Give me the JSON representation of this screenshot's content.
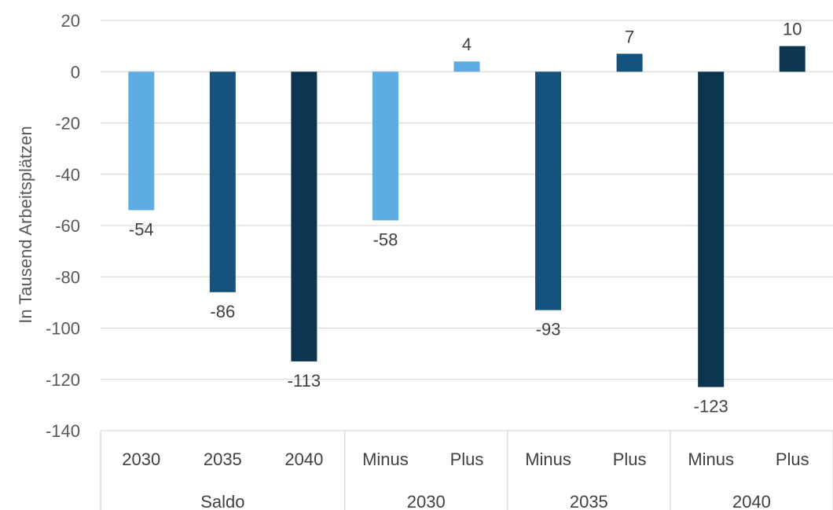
{
  "chart_data": {
    "type": "bar",
    "ylabel": "In Tausend Arbeitsplätzen",
    "ylim": [
      -140,
      20
    ],
    "yticks": [
      20,
      0,
      -20,
      -40,
      -60,
      -80,
      -100,
      -120,
      -140
    ],
    "grid": true,
    "groups": [
      {
        "name": "Saldo",
        "categories": [
          "2030",
          "2035",
          "2040"
        ]
      },
      {
        "name": "2030",
        "categories": [
          "Minus",
          "Plus"
        ]
      },
      {
        "name": "2035",
        "categories": [
          "Minus",
          "Plus"
        ]
      },
      {
        "name": "2040",
        "categories": [
          "Minus",
          "Plus"
        ]
      }
    ],
    "bars": [
      {
        "group": "Saldo",
        "category": "2030",
        "value": -54,
        "label": "-54",
        "color": "#5DADE2"
      },
      {
        "group": "Saldo",
        "category": "2035",
        "value": -86,
        "label": "-86",
        "color": "#15537E"
      },
      {
        "group": "Saldo",
        "category": "2040",
        "value": -113,
        "label": "-113",
        "color": "#0E3550"
      },
      {
        "group": "2030",
        "category": "Minus",
        "value": -58,
        "label": "-58",
        "color": "#5DADE2"
      },
      {
        "group": "2030",
        "category": "Plus",
        "value": 4,
        "label": "4",
        "color": "#5DADE2"
      },
      {
        "group": "2035",
        "category": "Minus",
        "value": -93,
        "label": "-93",
        "color": "#15537E"
      },
      {
        "group": "2035",
        "category": "Plus",
        "value": 7,
        "label": "7",
        "color": "#15537E"
      },
      {
        "group": "2040",
        "category": "Minus",
        "value": -123,
        "label": "-123",
        "color": "#0E3550"
      },
      {
        "group": "2040",
        "category": "Plus",
        "value": 10,
        "label": "10",
        "color": "#0E3550"
      }
    ]
  }
}
